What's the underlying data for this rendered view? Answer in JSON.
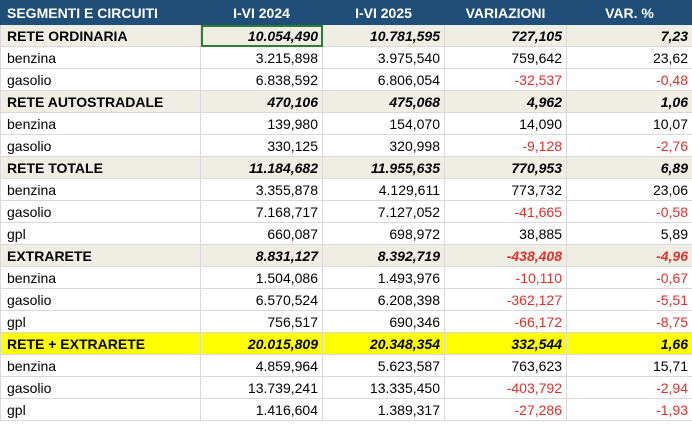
{
  "columns": [
    "SEGMENTI E CIRCUITI",
    "I-VI 2024",
    "I-VI 2025",
    "VARIAZIONI",
    "VAR. %"
  ],
  "rows": [
    {
      "kind": "section",
      "cells": [
        "RETE ORDINARIA",
        "10.054,490",
        "10.781,595",
        "727,105",
        "7,23"
      ],
      "neg": [
        false,
        false,
        false,
        false,
        false
      ]
    },
    {
      "kind": "detail",
      "cells": [
        "benzina",
        "3.215,898",
        "3.975,540",
        "759,642",
        "23,62"
      ],
      "neg": [
        false,
        false,
        false,
        false,
        false
      ]
    },
    {
      "kind": "detail",
      "cells": [
        "gasolio",
        "6.838,592",
        "6.806,054",
        "-32,537",
        "-0,48"
      ],
      "neg": [
        false,
        false,
        false,
        true,
        true
      ]
    },
    {
      "kind": "section",
      "cells": [
        "RETE AUTOSTRADALE",
        "470,106",
        "475,068",
        "4,962",
        "1,06"
      ],
      "neg": [
        false,
        false,
        false,
        false,
        false
      ]
    },
    {
      "kind": "detail",
      "cells": [
        "benzina",
        "139,980",
        "154,070",
        "14,090",
        "10,07"
      ],
      "neg": [
        false,
        false,
        false,
        false,
        false
      ]
    },
    {
      "kind": "detail",
      "cells": [
        "gasolio",
        "330,125",
        "320,998",
        "-9,128",
        "-2,76"
      ],
      "neg": [
        false,
        false,
        false,
        true,
        true
      ]
    },
    {
      "kind": "section",
      "cells": [
        "RETE TOTALE",
        "11.184,682",
        "11.955,635",
        "770,953",
        "6,89"
      ],
      "neg": [
        false,
        false,
        false,
        false,
        false
      ]
    },
    {
      "kind": "detail",
      "cells": [
        "benzina",
        "3.355,878",
        "4.129,611",
        "773,732",
        "23,06"
      ],
      "neg": [
        false,
        false,
        false,
        false,
        false
      ]
    },
    {
      "kind": "detail",
      "cells": [
        "gasolio",
        "7.168,717",
        "7.127,052",
        "-41,665",
        "-0,58"
      ],
      "neg": [
        false,
        false,
        false,
        true,
        true
      ]
    },
    {
      "kind": "detail",
      "cells": [
        "gpl",
        "660,087",
        "698,972",
        "38,885",
        "5,89"
      ],
      "neg": [
        false,
        false,
        false,
        false,
        false
      ]
    },
    {
      "kind": "section",
      "cells": [
        "EXTRARETE",
        "8.831,127",
        "8.392,719",
        "-438,408",
        "-4,96"
      ],
      "neg": [
        false,
        false,
        false,
        true,
        true
      ]
    },
    {
      "kind": "detail",
      "cells": [
        "benzina",
        "1.504,086",
        "1.493,976",
        "-10,110",
        "-0,67"
      ],
      "neg": [
        false,
        false,
        false,
        true,
        true
      ]
    },
    {
      "kind": "detail",
      "cells": [
        "gasolio",
        "6.570,524",
        "6.208,398",
        "-362,127",
        "-5,51"
      ],
      "neg": [
        false,
        false,
        false,
        true,
        true
      ]
    },
    {
      "kind": "detail",
      "cells": [
        "gpl",
        "756,517",
        "690,346",
        "-66,172",
        "-8,75"
      ],
      "neg": [
        false,
        false,
        false,
        true,
        true
      ]
    },
    {
      "kind": "highlight",
      "cells": [
        "RETE + EXTRARETE",
        "20.015,809",
        "20.348,354",
        "332,544",
        "1,66"
      ],
      "neg": [
        false,
        false,
        false,
        false,
        false
      ]
    },
    {
      "kind": "detail",
      "cells": [
        "benzina",
        "4.859,964",
        "5.623,587",
        "763,623",
        "15,71"
      ],
      "neg": [
        false,
        false,
        false,
        false,
        false
      ]
    },
    {
      "kind": "detail",
      "cells": [
        "gasolio",
        "13.739,241",
        "13.335,450",
        "-403,792",
        "-2,94"
      ],
      "neg": [
        false,
        false,
        false,
        true,
        true
      ]
    },
    {
      "kind": "detail",
      "cells": [
        "gpl",
        "1.416,604",
        "1.389,317",
        "-27,286",
        "-1,93"
      ],
      "neg": [
        false,
        false,
        false,
        true,
        true
      ]
    }
  ],
  "colors": {
    "header_bg": "#1f4e79",
    "section_bg": "#efede4",
    "highlight_bg": "#ffff00",
    "negative_text": "#e0312c",
    "selection_border": "#2e7d32"
  }
}
